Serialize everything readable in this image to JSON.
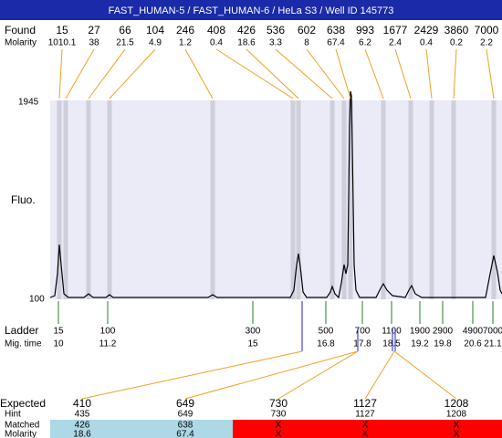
{
  "header": {
    "title": "FAST_HUMAN-5 / FAST_HUMAN-6 / HeLa S3 / Well ID 145773"
  },
  "found": {
    "label": "Found",
    "values": [
      "15",
      "27",
      "66",
      "104",
      "246",
      "408",
      "426",
      "536",
      "602",
      "638",
      "993",
      "1677",
      "2429",
      "3860",
      "7000"
    ]
  },
  "molarity": {
    "label": "Molarity",
    "values": [
      "1010.1",
      "38",
      "21.5",
      "4.9",
      "1.2",
      "0.4",
      "18.6",
      "3.3",
      "8",
      "67.4",
      "6.2",
      "2.4",
      "0.4",
      "0.2",
      "2.2"
    ]
  },
  "plot": {
    "y_top": "1945",
    "y_bottom": "100",
    "y_axis_label": "Fluo."
  },
  "ladder": {
    "label": "Ladder",
    "values": [
      "15",
      "100",
      "300",
      "500",
      "700",
      "1100",
      "1900",
      "2900",
      "4900",
      "7000"
    ]
  },
  "mig_time": {
    "label": "Mig. time",
    "values": [
      "10",
      "11.2",
      "15",
      "16.8",
      "17.8",
      "18.5",
      "19.2",
      "19.8",
      "20.6",
      "21.1"
    ]
  },
  "table": {
    "labels": [
      "Expected",
      "Hint",
      "Matched",
      "Molarity"
    ],
    "columns": [
      [
        "410",
        "435",
        "426",
        "18.6"
      ],
      [
        "649",
        "649",
        "638",
        "67.4"
      ],
      [
        "730",
        "730",
        "X",
        "X"
      ],
      [
        "1127",
        "1127",
        "X",
        "X"
      ],
      [
        "1208",
        "1208",
        "X",
        "X"
      ]
    ]
  }
}
